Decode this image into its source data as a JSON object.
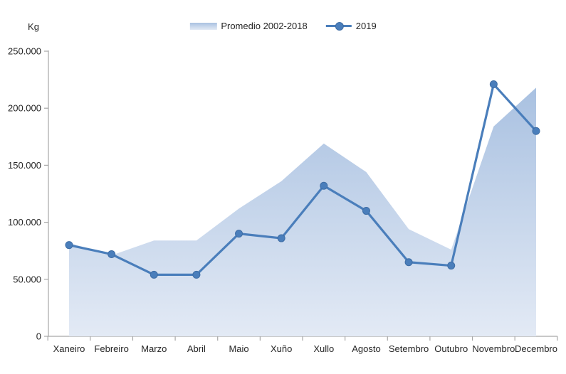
{
  "chart_data": {
    "type": "area+line combo",
    "title": "",
    "ylabel": "Kg",
    "xlabel": "",
    "categories": [
      "Xaneiro",
      "Febreiro",
      "Marzo",
      "Abril",
      "Maio",
      "Xuño",
      "Xullo",
      "Agosto",
      "Setembro",
      "Outubro",
      "Novembro",
      "Decembro"
    ],
    "series": [
      {
        "name": "Promedio 2002-2018",
        "type": "area",
        "values": [
          82000,
          71000,
          84000,
          84000,
          112000,
          136000,
          169000,
          144000,
          94000,
          76000,
          184000,
          218000
        ]
      },
      {
        "name": "2019",
        "type": "line",
        "marker": "circle",
        "values": [
          80000,
          72000,
          54000,
          54000,
          90000,
          86000,
          132000,
          110000,
          65000,
          62000,
          221000,
          180000
        ]
      }
    ],
    "y_axis": {
      "min": 0,
      "max": 250000,
      "step": 50000,
      "tick_labels": [
        "0",
        "50.000",
        "100.000",
        "150.000",
        "200.000",
        "250.000"
      ]
    },
    "legend_position": "top",
    "grid": false,
    "colors": {
      "line": "#4A7EBB",
      "line_edge": "#3E6DA5",
      "area_top": "#A9C1E1",
      "area_bottom": "#E3EAF5",
      "axis": "#A6A6A6",
      "text": "#262626"
    }
  }
}
